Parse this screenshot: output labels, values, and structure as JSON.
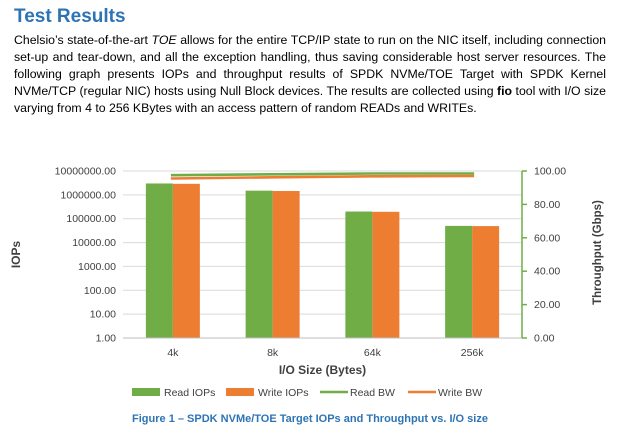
{
  "heading": "Test Results",
  "paragraph": {
    "p1": "Chelsio’s state-of-the-art ",
    "toe": "TOE",
    "p2": " allows for the entire TCP/IP state to run on the NIC itself, including connection set-up and tear-down, and all the exception handling, thus saving considerable host server resources. The following graph presents IOPs and throughput results of SPDK NVMe/TOE Target with SPDK Kernel NVMe/TCP (regular NIC) hosts using Null Block devices. The results are collected using ",
    "fio": "fio",
    "p3": " tool with I/O size varying from 4 to 256 KBytes with an access pattern of random READs and WRITEs."
  },
  "caption": "Figure 1 – SPDK NVMe/TOE Target IOPs and Throughput vs. I/O size",
  "colors": {
    "read": "#70ad47",
    "write": "#ed7d31",
    "heading": "#2e74b5"
  },
  "chart_data": {
    "type": "bar",
    "categories": [
      "4k",
      "8k",
      "64k",
      "256k"
    ],
    "xlabel": "I/O Size (Bytes)",
    "ylabel": "IOPs",
    "y2label": "Throughput (Gbps)",
    "y_scale": "log",
    "ylim": [
      1,
      10000000
    ],
    "y_ticks": [
      "10000000.00",
      "1000000.00",
      "100000.00",
      "10000.00",
      "1000.00",
      "100.00",
      "10.00",
      "1.00"
    ],
    "y2lim": [
      0,
      100
    ],
    "y2_ticks": [
      "100.00",
      "80.00",
      "60.00",
      "40.00",
      "20.00",
      "0.00"
    ],
    "series": [
      {
        "name": "Read IOPs",
        "kind": "bar",
        "axis": "left",
        "values": [
          3000000,
          1500000,
          200000,
          50000
        ]
      },
      {
        "name": "Write IOPs",
        "kind": "bar",
        "axis": "left",
        "values": [
          2900000,
          1450000,
          195000,
          49000
        ]
      },
      {
        "name": "Read BW",
        "kind": "line",
        "axis": "right",
        "values": [
          97.5,
          98,
          98.5,
          98.5
        ]
      },
      {
        "name": "Write BW",
        "kind": "line",
        "axis": "right",
        "values": [
          95.5,
          96.2,
          96.8,
          97
        ]
      }
    ],
    "legend_position": "bottom"
  }
}
